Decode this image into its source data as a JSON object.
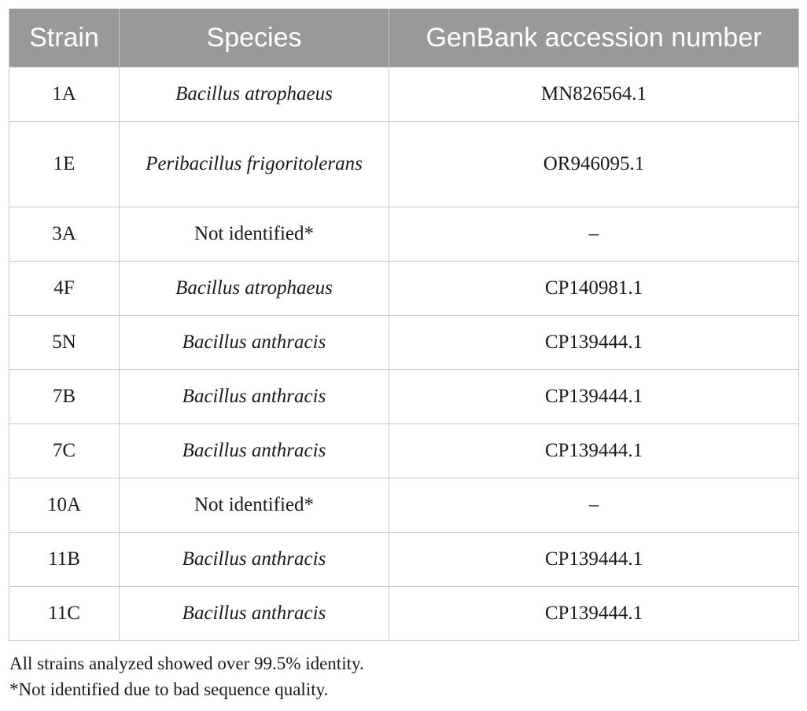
{
  "table": {
    "headers": {
      "strain": "Strain",
      "species": "Species",
      "accession": "GenBank accession number"
    },
    "rows": [
      {
        "strain": "1A",
        "species": "Bacillus atrophaeus",
        "italic": true,
        "accession": "MN826564.1"
      },
      {
        "strain": "1E",
        "species": "Peribacillus frigoritolerans",
        "italic": true,
        "accession": "OR946095.1"
      },
      {
        "strain": "3A",
        "species": "Not identified*",
        "italic": false,
        "accession": "–"
      },
      {
        "strain": "4F",
        "species": "Bacillus atrophaeus",
        "italic": true,
        "accession": "CP140981.1"
      },
      {
        "strain": "5N",
        "species": "Bacillus anthracis",
        "italic": true,
        "accession": "CP139444.1"
      },
      {
        "strain": "7B",
        "species": "Bacillus anthracis",
        "italic": true,
        "accession": "CP139444.1"
      },
      {
        "strain": "7C",
        "species": "Bacillus anthracis",
        "italic": true,
        "accession": "CP139444.1"
      },
      {
        "strain": "10A",
        "species": "Not identified*",
        "italic": false,
        "accession": "–"
      },
      {
        "strain": "11B",
        "species": "Bacillus anthracis",
        "italic": true,
        "accession": "CP139444.1"
      },
      {
        "strain": "11C",
        "species": "Bacillus anthracis",
        "italic": true,
        "accession": "CP139444.1"
      }
    ]
  },
  "footnotes": {
    "identity_note": "All strains analyzed showed over 99.5% identity.",
    "not_identified_note": "*Not identified due to bad sequence quality."
  },
  "colors": {
    "header_background": "#999999",
    "header_text": "#ffffff",
    "grid_line": "#c8c8c8"
  }
}
